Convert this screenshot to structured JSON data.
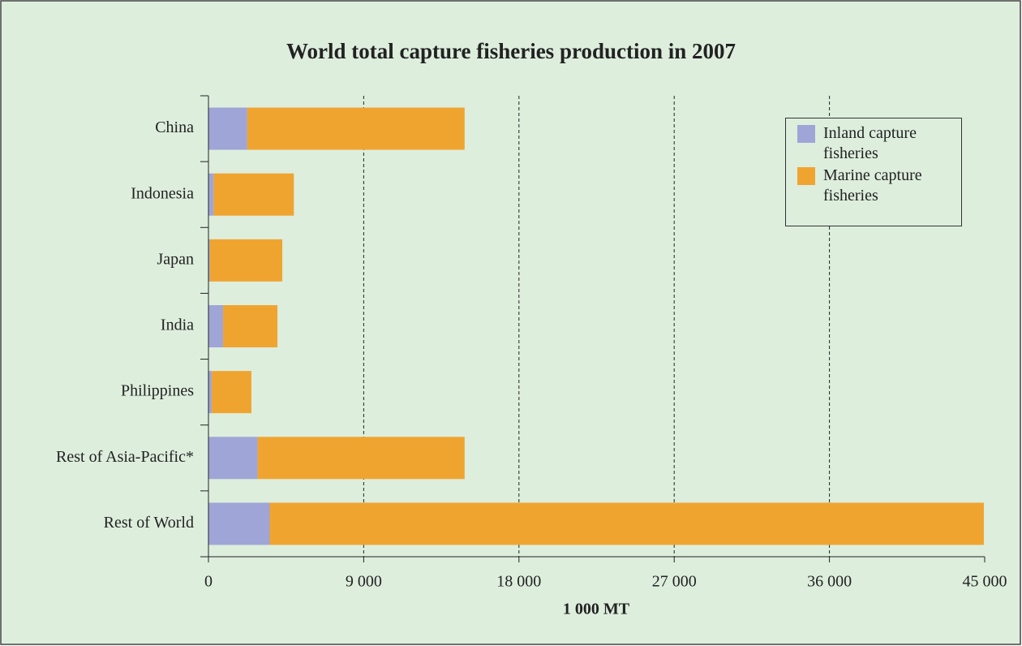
{
  "chart_data": {
    "type": "stacked-bar-horizontal",
    "title": "World total capture fisheries production in 2007",
    "x_label": "1 000 MT",
    "categories": [
      "China",
      "Indonesia",
      "Japan",
      "India",
      "Philippines",
      "Rest of Asia-Pacific*",
      "Rest of World"
    ],
    "series": [
      {
        "name": "Inland capture fisheries",
        "color": "#9fa5d6",
        "values": [
          2250,
          300,
          80,
          850,
          190,
          2850,
          3550
        ]
      },
      {
        "name": "Marine capture fisheries",
        "color": "#f0a430",
        "values": [
          12600,
          4650,
          4200,
          3150,
          2300,
          12000,
          41400
        ]
      }
    ],
    "xlim": [
      0,
      45000
    ],
    "xticks": [
      0,
      {
        "value": 9000,
        "label": "9 000"
      },
      {
        "value": 18000,
        "label": "18 000"
      },
      {
        "value": 27000,
        "label": "27 000"
      },
      {
        "value": 36000,
        "label": "36 000"
      },
      {
        "value": 45000,
        "label": "45 000"
      }
    ],
    "grid": true,
    "legend": "upper right"
  }
}
